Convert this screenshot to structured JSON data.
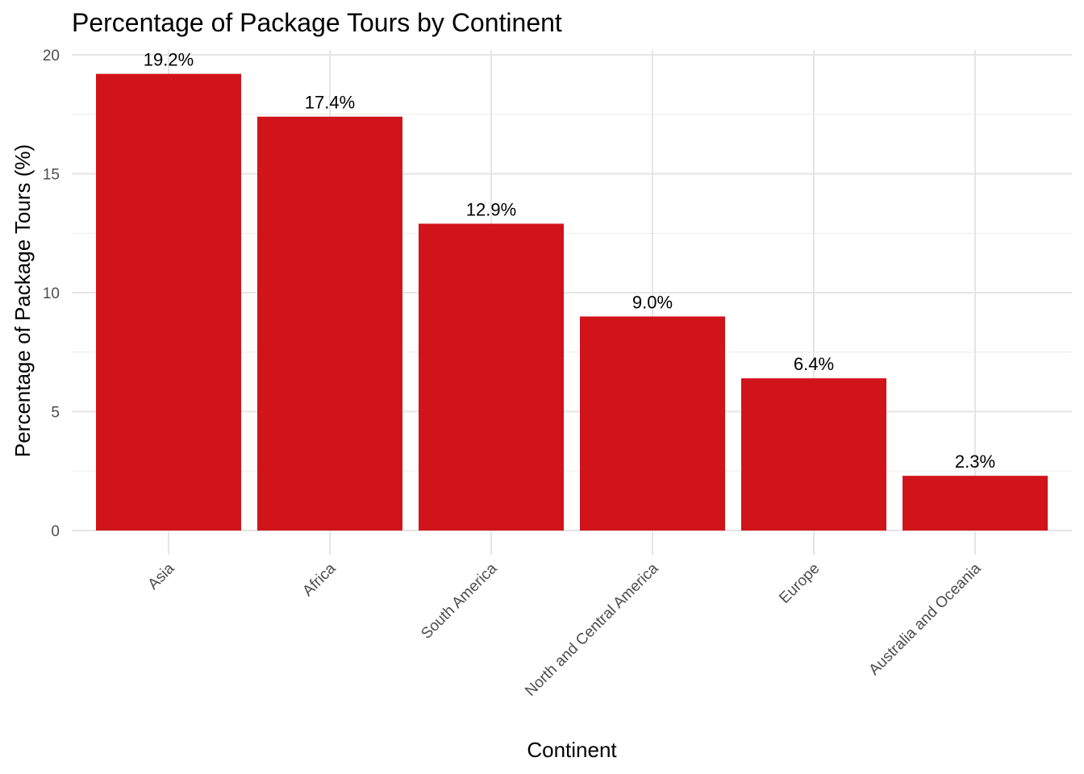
{
  "chart_data": {
    "type": "bar",
    "title": "Percentage of Package Tours by Continent",
    "xlabel": "Continent",
    "ylabel": "Percentage of Package Tours (%)",
    "categories": [
      "Asia",
      "Africa",
      "South America",
      "North and Central America",
      "Europe",
      "Australia and Oceania"
    ],
    "values": [
      19.2,
      17.4,
      12.9,
      9.0,
      6.4,
      2.3
    ],
    "data_labels": [
      "19.2%",
      "17.4%",
      "12.9%",
      "9.0%",
      "6.4%",
      "2.3%"
    ],
    "ylim": [
      0,
      20
    ],
    "yticks": [
      0,
      5,
      10,
      15,
      20
    ],
    "ytick_labels": [
      "0",
      "5",
      "10",
      "15",
      "20"
    ],
    "bar_color": "#d0141a",
    "grid": true,
    "legend": false
  }
}
